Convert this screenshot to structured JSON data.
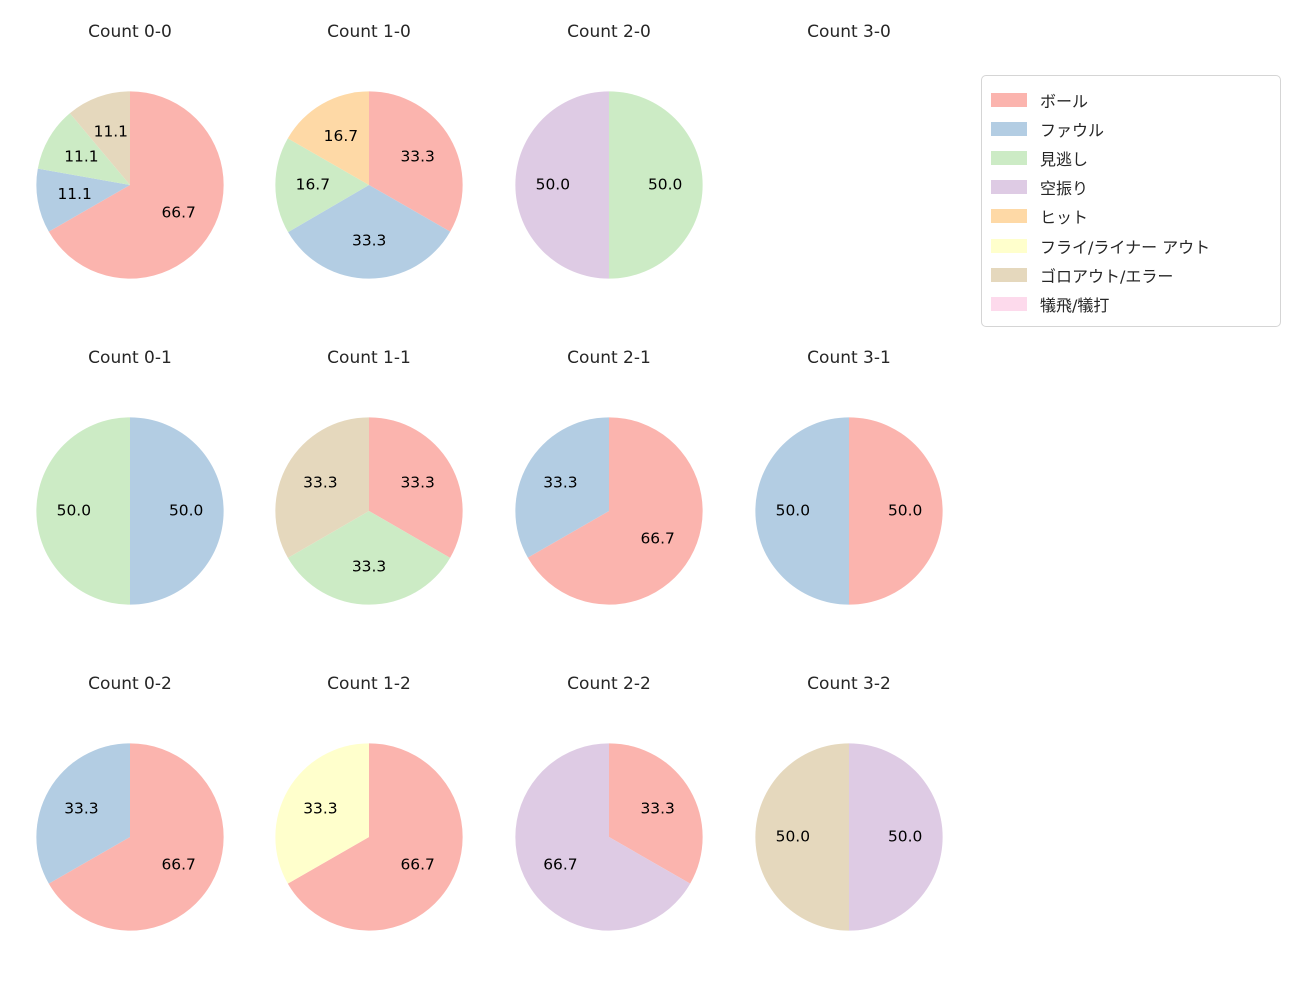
{
  "legend": {
    "items": [
      {
        "label": "ボール",
        "color": "#fbb4ae"
      },
      {
        "label": "ファウル",
        "color": "#b3cde3"
      },
      {
        "label": "見逃し",
        "color": "#ccebc5"
      },
      {
        "label": "空振り",
        "color": "#decbe4"
      },
      {
        "label": "ヒット",
        "color": "#fed9a6"
      },
      {
        "label": "フライ/ライナー アウト",
        "color": "#ffffcc"
      },
      {
        "label": "ゴロアウト/エラー",
        "color": "#e5d8bd"
      },
      {
        "label": "犠飛/犠打",
        "color": "#fddaec"
      }
    ]
  },
  "chart_data": {
    "type": "pie",
    "unit": "percent",
    "start_angle_deg": 90,
    "direction": "clockwise",
    "label_format": "one_decimal",
    "legend_position": "upper right",
    "charts": [
      {
        "title": "Count 0-0",
        "slices": [
          {
            "label": "ボール",
            "value": 66.7
          },
          {
            "label": "ファウル",
            "value": 11.1
          },
          {
            "label": "見逃し",
            "value": 11.1
          },
          {
            "label": "ゴロアウト/エラー",
            "value": 11.1
          }
        ]
      },
      {
        "title": "Count 1-0",
        "slices": [
          {
            "label": "ボール",
            "value": 33.3
          },
          {
            "label": "ファウル",
            "value": 33.3
          },
          {
            "label": "見逃し",
            "value": 16.7
          },
          {
            "label": "ヒット",
            "value": 16.7
          }
        ]
      },
      {
        "title": "Count 2-0",
        "slices": [
          {
            "label": "見逃し",
            "value": 50.0
          },
          {
            "label": "空振り",
            "value": 50.0
          }
        ]
      },
      {
        "title": "Count 3-0",
        "slices": []
      },
      {
        "title": "Count 0-1",
        "slices": [
          {
            "label": "ファウル",
            "value": 50.0
          },
          {
            "label": "見逃し",
            "value": 50.0
          }
        ]
      },
      {
        "title": "Count 1-1",
        "slices": [
          {
            "label": "ボール",
            "value": 33.3
          },
          {
            "label": "見逃し",
            "value": 33.3
          },
          {
            "label": "ゴロアウト/エラー",
            "value": 33.3
          }
        ]
      },
      {
        "title": "Count 2-1",
        "slices": [
          {
            "label": "ボール",
            "value": 66.7
          },
          {
            "label": "ファウル",
            "value": 33.3
          }
        ]
      },
      {
        "title": "Count 3-1",
        "slices": [
          {
            "label": "ボール",
            "value": 50.0
          },
          {
            "label": "ファウル",
            "value": 50.0
          }
        ]
      },
      {
        "title": "Count 0-2",
        "slices": [
          {
            "label": "ボール",
            "value": 66.7
          },
          {
            "label": "ファウル",
            "value": 33.3
          }
        ]
      },
      {
        "title": "Count 1-2",
        "slices": [
          {
            "label": "ボール",
            "value": 66.7
          },
          {
            "label": "フライ/ライナー アウト",
            "value": 33.3
          }
        ]
      },
      {
        "title": "Count 2-2",
        "slices": [
          {
            "label": "ボール",
            "value": 33.3
          },
          {
            "label": "空振り",
            "value": 66.7
          }
        ]
      },
      {
        "title": "Count 3-2",
        "slices": [
          {
            "label": "空振り",
            "value": 50.0
          },
          {
            "label": "ゴロアウト/エラー",
            "value": 50.0
          }
        ]
      }
    ]
  }
}
